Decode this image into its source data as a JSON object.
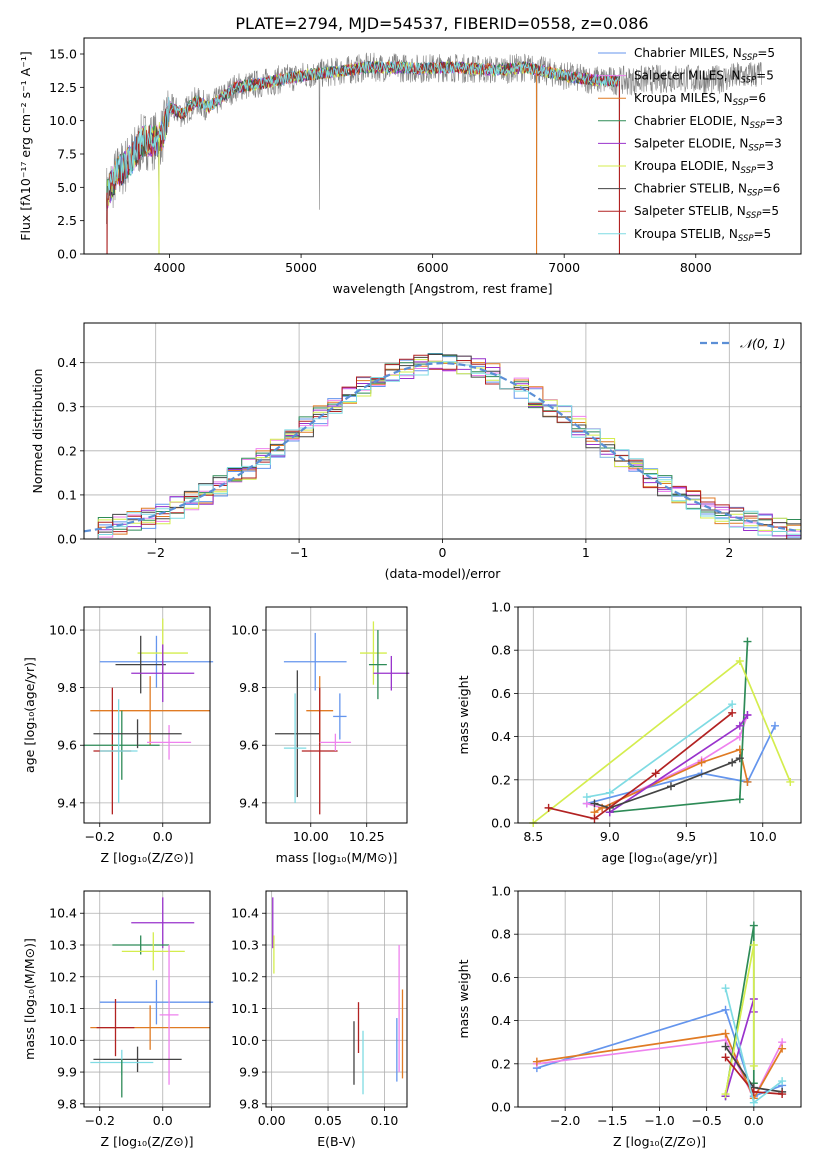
{
  "title": "PLATE=2794, MJD=54537, FIBERID=0558, z=0.086",
  "colors": {
    "Chabrier MILES": "#6495ed",
    "Salpeter MILES": "#ee82ee",
    "Kroupa MILES": "#e07b24",
    "Chabrier ELODIE": "#2e8b57",
    "Salpeter ELODIE": "#9932cc",
    "Kroupa ELODIE": "#d4ed4e",
    "Chabrier STELIB": "#444444",
    "Salpeter STELIB": "#b22222",
    "Kroupa STELIB": "#7fdbe3",
    "data": "#808080"
  },
  "chart_data": [
    {
      "id": "spectrum",
      "type": "line",
      "xlabel": "wavelength [Angstrom, rest frame]",
      "ylabel": "Flux [fλ10⁻¹⁷ erg cm⁻² s⁻¹ A⁻¹]",
      "xlim": [
        3350,
        8800
      ],
      "ylim": [
        0,
        16.2
      ],
      "xticks": [
        "4000",
        "5000",
        "6000",
        "7000",
        "8000"
      ],
      "yticks": [
        "0.0",
        "2.5",
        "5.0",
        "7.5",
        "10.0",
        "12.5",
        "15.0"
      ],
      "legend_position": "top-right",
      "legend": [
        {
          "name": "Chabrier MILES",
          "nssp": "5"
        },
        {
          "name": "Salpeter MILES",
          "nssp": "5"
        },
        {
          "name": "Kroupa MILES",
          "nssp": "6"
        },
        {
          "name": "Chabrier ELODIE",
          "nssp": "3"
        },
        {
          "name": "Salpeter ELODIE",
          "nssp": "3"
        },
        {
          "name": "Kroupa ELODIE",
          "nssp": "3"
        },
        {
          "name": "Chabrier STELIB",
          "nssp": "6"
        },
        {
          "name": "Salpeter STELIB",
          "nssp": "5"
        },
        {
          "name": "Kroupa STELIB",
          "nssp": "5"
        }
      ],
      "continuum": [
        [
          3520,
          4.5
        ],
        [
          3600,
          6.0
        ],
        [
          3700,
          7.0
        ],
        [
          3800,
          8.5
        ],
        [
          3900,
          8.5
        ],
        [
          3950,
          9.0
        ],
        [
          4000,
          11.0
        ],
        [
          4100,
          10.5
        ],
        [
          4200,
          11.5
        ],
        [
          4300,
          11.0
        ],
        [
          4500,
          12.5
        ],
        [
          4700,
          12.8
        ],
        [
          4900,
          13.2
        ],
        [
          5100,
          13.5
        ],
        [
          5300,
          13.7
        ],
        [
          5500,
          14.0
        ],
        [
          5700,
          14.0
        ],
        [
          5900,
          13.9
        ],
        [
          6100,
          14.0
        ],
        [
          6300,
          13.9
        ],
        [
          6500,
          13.8
        ],
        [
          6700,
          14.0
        ],
        [
          6900,
          13.6
        ],
        [
          7100,
          13.2
        ],
        [
          7300,
          13.0
        ],
        [
          7500,
          13.0
        ],
        [
          7700,
          13.1
        ],
        [
          7900,
          13.2
        ],
        [
          8100,
          13.0
        ],
        [
          8300,
          13.3
        ],
        [
          8500,
          13.5
        ]
      ],
      "spikes": [
        [
          3525,
          -4.5
        ],
        [
          3920,
          -6.5
        ],
        [
          5140,
          3.0
        ],
        [
          5140,
          -13.5
        ],
        [
          6790,
          -13.8
        ],
        [
          7420,
          -13.0
        ]
      ],
      "series_end": 7420
    },
    {
      "id": "residuals",
      "type": "histogram",
      "xlabel": "(data-model)/error",
      "ylabel": "Normed distribution",
      "xlim": [
        -2.5,
        2.5
      ],
      "ylim": [
        0,
        0.49
      ],
      "xticks": [
        "−2",
        "−1",
        "0",
        "1",
        "2"
      ],
      "yticks": [
        "0.0",
        "0.1",
        "0.2",
        "0.3",
        "0.4"
      ],
      "legend_position": "top-right",
      "legend_label": "𝒩(0, 1)",
      "reference": "normal",
      "bin_width": 0.1,
      "bins_from": -2.5,
      "bins": 50
    },
    {
      "id": "age-Z",
      "type": "errorbar",
      "xlabel": "Z [log₁₀(Z/Z⊙)]",
      "ylabel": "age  [log₁₀(age/yr)]",
      "xlim": [
        -0.25,
        0.15
      ],
      "ylim": [
        9.33,
        10.08
      ],
      "xticks": [
        "−0.2",
        "0.0"
      ],
      "yticks": [
        "9.4",
        "9.6",
        "9.8",
        "10.0"
      ],
      "points": [
        {
          "series": "Chabrier MILES",
          "x": -0.02,
          "y": 9.89,
          "xerr": 0.18,
          "yerr": 0.09
        },
        {
          "series": "Kroupa MILES",
          "x": -0.04,
          "y": 9.72,
          "xerr": 0.19,
          "yerr": 0.12
        },
        {
          "series": "Kroupa ELODIE",
          "x": 0.0,
          "y": 9.92,
          "xerr": 0.08,
          "yerr": 0.12
        },
        {
          "series": "Chabrier STELIB",
          "x": -0.07,
          "y": 9.88,
          "xerr": 0.08,
          "yerr": 0.1
        },
        {
          "series": "Salpeter ELODIE",
          "x": 0.0,
          "y": 9.85,
          "xerr": 0.1,
          "yerr": 0.1
        },
        {
          "series": "Salpeter STELIB",
          "x": -0.16,
          "y": 9.58,
          "xerr": 0.06,
          "yerr": 0.22
        },
        {
          "series": "Chabrier ELODIE",
          "x": -0.13,
          "y": 9.6,
          "xerr": 0.12,
          "yerr": 0.12
        },
        {
          "series": "Kroupa STELIB",
          "x": -0.14,
          "y": 9.58,
          "xerr": 0.06,
          "yerr": 0.18
        },
        {
          "series": "Salpeter MILES",
          "x": 0.02,
          "y": 9.61,
          "xerr": 0.07,
          "yerr": 0.06
        },
        {
          "series": "Chabrier STELIB",
          "x": -0.08,
          "y": 9.64,
          "xerr": 0.14,
          "yerr": 0.05
        }
      ]
    },
    {
      "id": "age-mass",
      "type": "errorbar",
      "xlabel": "mass [log₁₀(M/M⊙)]",
      "ylabel": "",
      "xlim": [
        9.8,
        10.43
      ],
      "ylim": [
        9.33,
        10.08
      ],
      "xticks": [
        "10.00",
        "10.25"
      ],
      "yticks": [
        "9.4",
        "9.6",
        "9.8",
        "10.0"
      ],
      "points": [
        {
          "series": "Chabrier MILES",
          "x": 10.02,
          "y": 9.89,
          "xerr": 0.14,
          "yerr": 0.1
        },
        {
          "series": "Kroupa MILES",
          "x": 10.04,
          "y": 9.72,
          "xerr": 0.06,
          "yerr": 0.12
        },
        {
          "series": "Kroupa ELODIE",
          "x": 10.28,
          "y": 9.92,
          "xerr": 0.06,
          "yerr": 0.11
        },
        {
          "series": "Chabrier ELODIE",
          "x": 10.3,
          "y": 9.88,
          "xerr": 0.04,
          "yerr": 0.12
        },
        {
          "series": "Salpeter ELODIE",
          "x": 10.36,
          "y": 9.85,
          "xerr": 0.08,
          "yerr": 0.06
        },
        {
          "series": "Chabrier STELIB",
          "x": 9.94,
          "y": 9.64,
          "xerr": 0.1,
          "yerr": 0.22
        },
        {
          "series": "Salpeter STELIB",
          "x": 10.04,
          "y": 9.58,
          "xerr": 0.08,
          "yerr": 0.22
        },
        {
          "series": "Kroupa STELIB",
          "x": 9.93,
          "y": 9.59,
          "xerr": 0.05,
          "yerr": 0.19
        },
        {
          "series": "Salpeter MILES",
          "x": 10.11,
          "y": 9.61,
          "xerr": 0.07,
          "yerr": 0.03
        },
        {
          "series": "Chabrier MILES",
          "x": 10.13,
          "y": 9.7,
          "xerr": 0.03,
          "yerr": 0.08
        }
      ]
    },
    {
      "id": "weight-age",
      "type": "line",
      "xlabel": "age  [log₁₀(age/yr)]",
      "ylabel": "mass weight",
      "xlim": [
        8.4,
        10.25
      ],
      "ylim": [
        0,
        1
      ],
      "xticks": [
        "8.5",
        "9.0",
        "9.5",
        "10.0"
      ],
      "yticks": [
        "0.0",
        "0.2",
        "0.4",
        "0.6",
        "0.8",
        "1.0"
      ],
      "series": [
        {
          "name": "Chabrier MILES",
          "points": [
            [
              8.85,
              0.09
            ],
            [
              9.6,
              0.23
            ],
            [
              9.9,
              0.19
            ],
            [
              10.08,
              0.45
            ]
          ]
        },
        {
          "name": "Salpeter MILES",
          "points": [
            [
              8.85,
              0.09
            ],
            [
              8.95,
              0.07
            ],
            [
              9.6,
              0.29
            ],
            [
              9.85,
              0.4
            ],
            [
              9.9,
              0.5
            ]
          ]
        },
        {
          "name": "Kroupa MILES",
          "points": [
            [
              8.9,
              0.05
            ],
            [
              8.95,
              0.07
            ],
            [
              9.6,
              0.28
            ],
            [
              9.85,
              0.34
            ],
            [
              9.9,
              0.19
            ]
          ]
        },
        {
          "name": "Chabrier ELODIE",
          "points": [
            [
              9.0,
              0.05
            ],
            [
              9.85,
              0.11
            ],
            [
              9.9,
              0.84
            ]
          ]
        },
        {
          "name": "Salpeter ELODIE",
          "points": [
            [
              9.0,
              0.05
            ],
            [
              9.85,
              0.45
            ],
            [
              9.9,
              0.5
            ]
          ]
        },
        {
          "name": "Kroupa ELODIE",
          "points": [
            [
              8.5,
              0.0
            ],
            [
              9.85,
              0.75
            ],
            [
              10.18,
              0.19
            ]
          ]
        },
        {
          "name": "Chabrier STELIB",
          "points": [
            [
              8.9,
              0.09
            ],
            [
              9.0,
              0.07
            ],
            [
              9.4,
              0.17
            ],
            [
              9.8,
              0.28
            ],
            [
              9.85,
              0.3
            ]
          ]
        },
        {
          "name": "Salpeter STELIB",
          "points": [
            [
              8.6,
              0.07
            ],
            [
              8.9,
              0.02
            ],
            [
              9.3,
              0.23
            ],
            [
              9.8,
              0.51
            ]
          ]
        },
        {
          "name": "Kroupa STELIB",
          "points": [
            [
              8.85,
              0.12
            ],
            [
              9.0,
              0.14
            ],
            [
              9.8,
              0.55
            ]
          ]
        }
      ]
    },
    {
      "id": "mass-Z",
      "type": "errorbar",
      "xlabel": "Z [log₁₀(Z/Z⊙)]",
      "ylabel": "mass [log₁₀(M/M⊙)]",
      "xlim": [
        -0.25,
        0.15
      ],
      "ylim": [
        9.79,
        10.47
      ],
      "xticks": [
        "−0.2",
        "0.0"
      ],
      "yticks": [
        "9.8",
        "9.9",
        "10.0",
        "10.1",
        "10.2",
        "10.3",
        "10.4"
      ],
      "points": [
        {
          "series": "Salpeter ELODIE",
          "x": 0.0,
          "y": 10.37,
          "xerr": 0.1,
          "yerr": 0.08
        },
        {
          "series": "Chabrier ELODIE",
          "x": -0.07,
          "y": 10.3,
          "xerr": 0.09,
          "yerr": 0.03
        },
        {
          "series": "Kroupa ELODIE",
          "x": -0.03,
          "y": 10.28,
          "xerr": 0.1,
          "yerr": 0.06
        },
        {
          "series": "Chabrier MILES",
          "x": -0.02,
          "y": 10.12,
          "xerr": 0.18,
          "yerr": 0.07
        },
        {
          "series": "Kroupa MILES",
          "x": -0.04,
          "y": 10.04,
          "xerr": 0.19,
          "yerr": 0.07
        },
        {
          "series": "Salpeter STELIB",
          "x": -0.15,
          "y": 10.04,
          "xerr": 0.06,
          "yerr": 0.09
        },
        {
          "series": "Salpeter MILES",
          "x": 0.02,
          "y": 10.08,
          "xerr": 0.03,
          "yerr": 0.22
        },
        {
          "series": "Chabrier STELIB",
          "x": -0.08,
          "y": 9.94,
          "xerr": 0.14,
          "yerr": 0.04
        },
        {
          "series": "Kroupa STELIB",
          "x": -0.13,
          "y": 9.93,
          "xerr": 0.1,
          "yerr": 0.04
        },
        {
          "series": "Chabrier ELODIE",
          "x": -0.13,
          "y": 9.88,
          "xerr": 0.0,
          "yerr": 0.06
        }
      ]
    },
    {
      "id": "mass-EBV",
      "type": "errorbar",
      "xlabel": "E(B-V)",
      "ylabel": "",
      "xlim": [
        -0.005,
        0.12
      ],
      "ylim": [
        9.79,
        10.47
      ],
      "xticks": [
        "0.00",
        "0.05",
        "0.10"
      ],
      "yticks": [
        "9.8",
        "9.9",
        "10.0",
        "10.1",
        "10.2",
        "10.3",
        "10.4"
      ],
      "points": [
        {
          "series": "Salpeter ELODIE",
          "x": 0.001,
          "y": 10.37,
          "xerr": 0.0,
          "yerr": 0.08
        },
        {
          "series": "Kroupa ELODIE",
          "x": 0.002,
          "y": 10.27,
          "xerr": 0.0,
          "yerr": 0.06
        },
        {
          "series": "Salpeter STELIB",
          "x": 0.077,
          "y": 10.04,
          "xerr": 0.0,
          "yerr": 0.08
        },
        {
          "series": "Chabrier STELIB",
          "x": 0.073,
          "y": 9.96,
          "xerr": 0.0,
          "yerr": 0.1
        },
        {
          "series": "Kroupa STELIB",
          "x": 0.081,
          "y": 9.93,
          "xerr": 0.0,
          "yerr": 0.1
        },
        {
          "series": "Salpeter MILES",
          "x": 0.113,
          "y": 10.1,
          "xerr": 0.0,
          "yerr": 0.2
        },
        {
          "series": "Kroupa MILES",
          "x": 0.116,
          "y": 10.02,
          "xerr": 0.0,
          "yerr": 0.14
        },
        {
          "series": "Chabrier MILES",
          "x": 0.111,
          "y": 9.97,
          "xerr": 0.0,
          "yerr": 0.1
        }
      ]
    },
    {
      "id": "weight-Z",
      "type": "line",
      "xlabel": "Z [log₁₀(Z/Z⊙)]",
      "ylabel": "mass weight",
      "xlim": [
        -2.5,
        0.5
      ],
      "ylim": [
        0,
        1
      ],
      "xticks": [
        "−2.0",
        "−1.5",
        "−1.0",
        "−0.5",
        "0.0"
      ],
      "yticks": [
        "0.0",
        "0.2",
        "0.4",
        "0.6",
        "0.8",
        "1.0"
      ],
      "series": [
        {
          "name": "Chabrier MILES",
          "points": [
            [
              -2.3,
              0.18
            ],
            [
              -0.3,
              0.45
            ],
            [
              0.0,
              0.05
            ],
            [
              0.3,
              0.1
            ]
          ]
        },
        {
          "name": "Salpeter MILES",
          "points": [
            [
              -2.3,
              0.2
            ],
            [
              -0.3,
              0.31
            ],
            [
              0.0,
              0.04
            ],
            [
              0.3,
              0.3
            ]
          ]
        },
        {
          "name": "Kroupa MILES",
          "points": [
            [
              -2.3,
              0.21
            ],
            [
              -0.3,
              0.34
            ],
            [
              0.0,
              0.04
            ],
            [
              0.3,
              0.27
            ]
          ]
        },
        {
          "name": "Chabrier ELODIE",
          "points": [
            [
              -0.3,
              0.05
            ],
            [
              0.0,
              0.84
            ],
            [
              0.0,
              0.11
            ]
          ]
        },
        {
          "name": "Salpeter ELODIE",
          "points": [
            [
              -0.3,
              0.05
            ],
            [
              0.0,
              0.5
            ],
            [
              0.0,
              0.44
            ]
          ]
        },
        {
          "name": "Kroupa ELODIE",
          "points": [
            [
              -0.3,
              0.06
            ],
            [
              0.0,
              0.75
            ],
            [
              0.0,
              0.19
            ]
          ]
        },
        {
          "name": "Chabrier STELIB",
          "points": [
            [
              -0.3,
              0.28
            ],
            [
              0.0,
              0.09
            ],
            [
              0.3,
              0.07
            ]
          ]
        },
        {
          "name": "Salpeter STELIB",
          "points": [
            [
              -0.3,
              0.23
            ],
            [
              0.0,
              0.07
            ],
            [
              0.3,
              0.06
            ]
          ]
        },
        {
          "name": "Kroupa STELIB",
          "points": [
            [
              -0.3,
              0.55
            ],
            [
              0.0,
              0.02
            ],
            [
              0.3,
              0.12
            ]
          ]
        }
      ]
    }
  ]
}
